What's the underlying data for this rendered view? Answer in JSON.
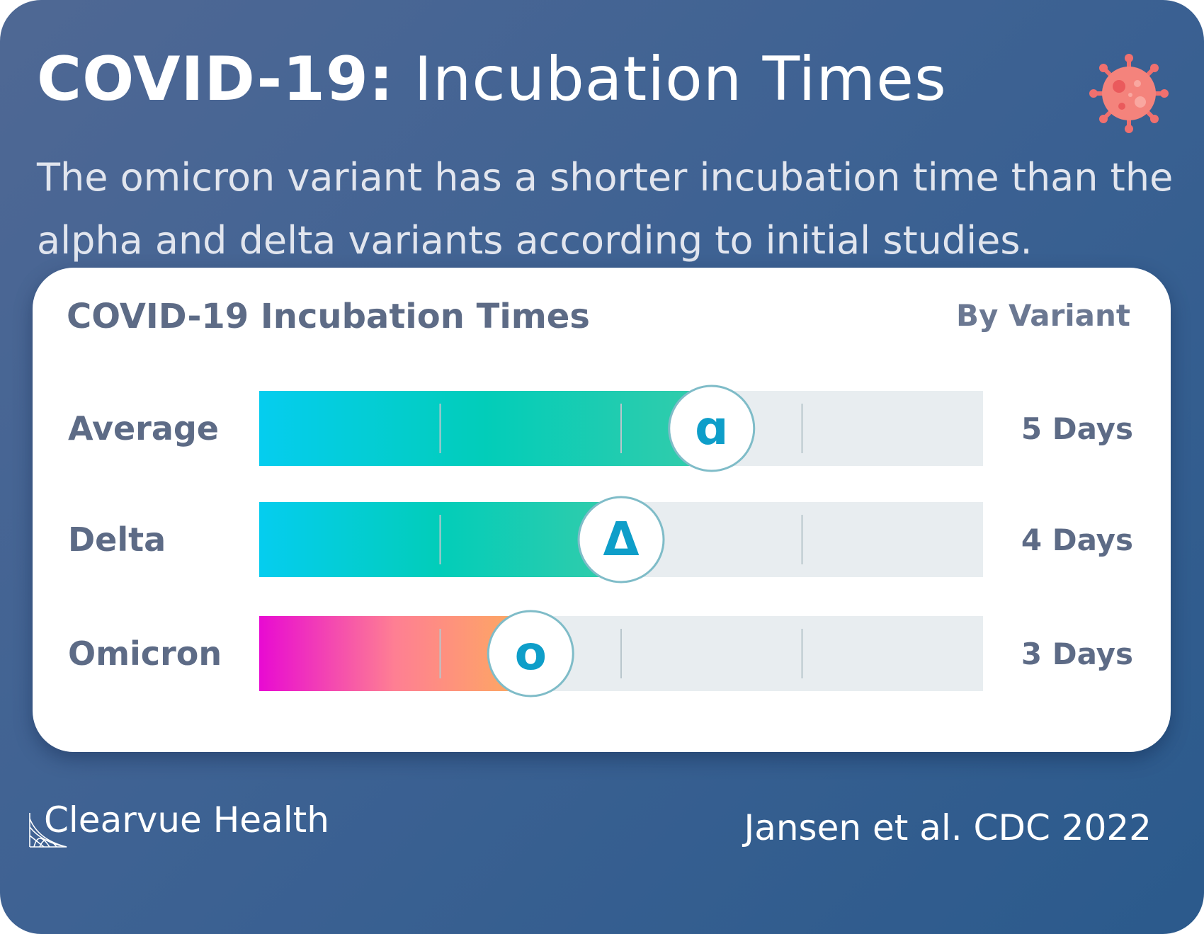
{
  "header": {
    "title_bold": "COVID-19:",
    "title_rest": " Incubation Times",
    "subtitle_line1": "The omicron variant has a shorter incubation time than the",
    "subtitle_line2": "alpha and delta variants according to initial studies.",
    "virus_icon": "virus-icon"
  },
  "footer": {
    "brand": "Clearvue Health",
    "source": "Jansen et al. CDC 2022"
  },
  "chart_data": {
    "type": "bar",
    "orientation": "horizontal",
    "title": "COVID-19 Incubation Times",
    "subtitle": "By Variant",
    "xlim": [
      0,
      8
    ],
    "tick_divisions": [
      2,
      4,
      6
    ],
    "grid": false,
    "categories": [
      "Average",
      "Delta",
      "Omicron"
    ],
    "values": [
      5,
      4,
      3
    ],
    "value_labels": [
      "5 Days",
      "4 Days",
      "3 Days"
    ],
    "markers": [
      "ɑ",
      "Δ",
      "o"
    ],
    "gradients": [
      [
        "#05cdef",
        "#02cdb9",
        "#35ccaa"
      ],
      [
        "#05cdef",
        "#02cdb9",
        "#35ccaa"
      ],
      [
        "#e80ad2",
        "#fe7f93",
        "#fdad5c"
      ]
    ],
    "colors": {
      "track": "#e8edf0",
      "tick": "#b9c6cc",
      "label": "#5d6b86",
      "marker_text": "#0e9ec9",
      "marker_border": "#7fbcc8"
    }
  }
}
